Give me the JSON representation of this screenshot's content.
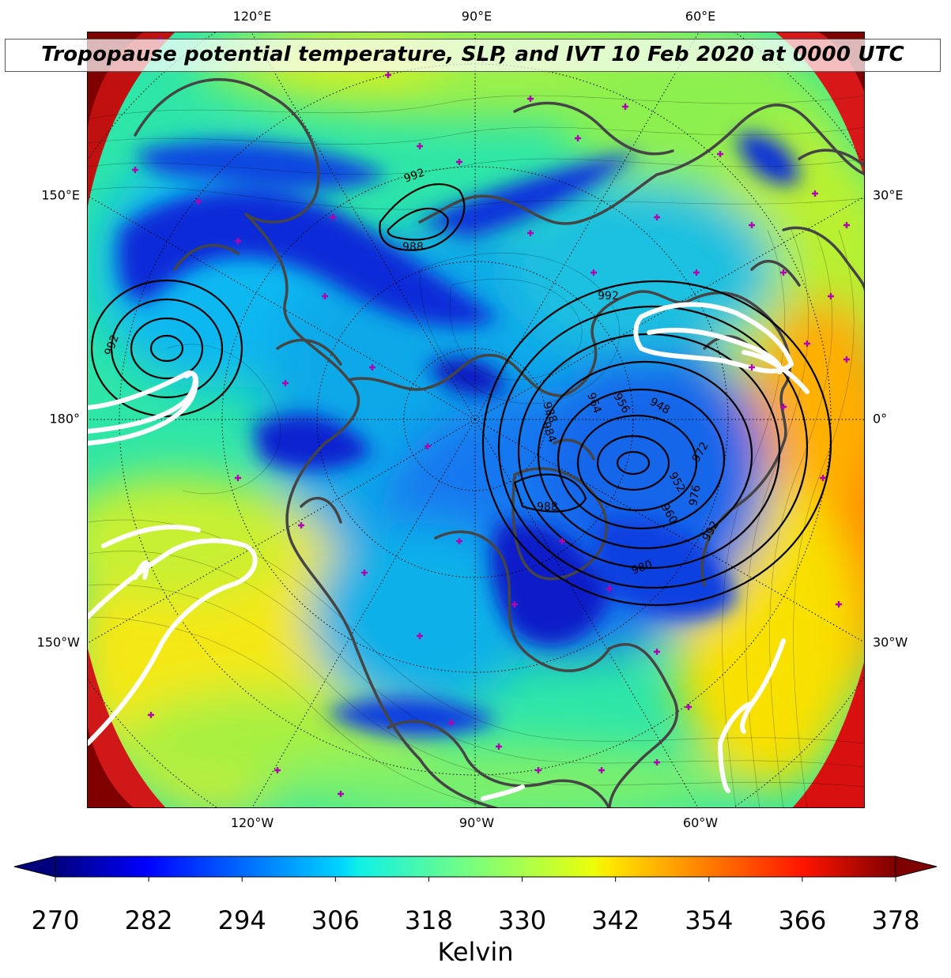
{
  "title": "Tropopause potential temperature, SLP, and IVT 10 Feb 2020 at 0000 UTC",
  "map": {
    "projection": "north-polar-stereographic",
    "longitude_labels_top": [
      "120°E",
      "90°E",
      "60°E"
    ],
    "longitude_labels_bottom": [
      "120°W",
      "90°W",
      "60°W"
    ],
    "longitude_labels_left": [
      "150°E",
      "180°",
      "150°W"
    ],
    "longitude_labels_right": [
      "30°E",
      "0°",
      "30°W"
    ],
    "slp_contour_labels": [
      "992",
      "988",
      "992",
      "992",
      "984",
      "956",
      "948",
      "964",
      "972",
      "988",
      "960",
      "980",
      "992",
      "976",
      "988",
      "952"
    ],
    "colors": {
      "coastline": "#454545",
      "slp_contour": "#000000",
      "ivt_contour": "#ffffff",
      "station_marker": "#b000b0"
    }
  },
  "colorbar": {
    "cmap": "jet",
    "range": [
      270,
      378
    ],
    "extend": "both",
    "ticks": [
      "270",
      "282",
      "294",
      "306",
      "318",
      "330",
      "342",
      "354",
      "366",
      "378"
    ],
    "label": "Kelvin"
  }
}
